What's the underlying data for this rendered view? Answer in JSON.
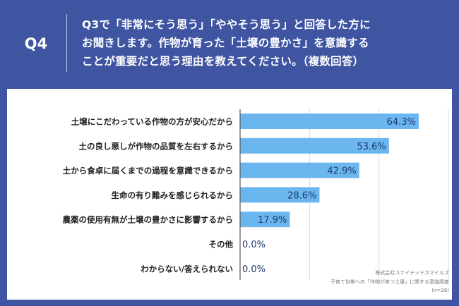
{
  "question": {
    "badge": "Q4",
    "lines": [
      "Q3で「非常にそう思う」「ややそう思う」と回答した方に",
      "お聞きします。作物が育った「土壌の豊かさ」を意識する",
      "ことが重要だと思う理由を教えてください。（複数回答）"
    ]
  },
  "colors": {
    "background": "#3f55a2",
    "bar": "#6bb6ef",
    "value_text": "#1f3a6e",
    "label_text": "#222222",
    "grid": "#d9d9d9"
  },
  "chart_data": {
    "type": "bar",
    "orientation": "horizontal",
    "unit": "%",
    "xlim": [
      0,
      100
    ],
    "grid": true,
    "categories": [
      "土壌にこだわっている作物の方が安心だから",
      "土の良し悪しが作物の品質を左右するから",
      "土から食卓に届くまでの過程を意識できるから",
      "生命の有り難みを感じられるから",
      "農薬の使用有無が土壌の豊かさに影響するから",
      "その他",
      "わからない/答えられない"
    ],
    "values": [
      64.3,
      53.6,
      42.9,
      28.6,
      17.9,
      0.0,
      0.0
    ],
    "value_labels": [
      "64.3%",
      "53.6%",
      "42.9%",
      "28.6%",
      "17.9%",
      "0.0%",
      "0.0%"
    ]
  },
  "source": {
    "company": "株式会社ユナイテッドスマイルズ",
    "survey": "子育て世帯への「作物が育つ土壌」に関する意識調査",
    "sample": "(n=28)"
  }
}
